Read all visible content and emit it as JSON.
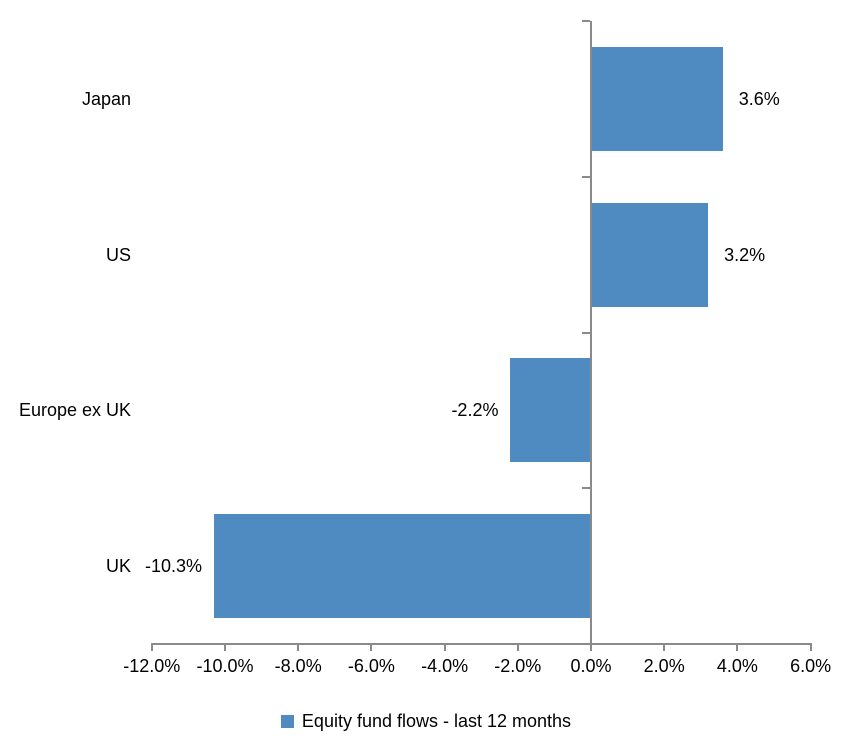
{
  "chart_data": {
    "type": "bar",
    "orientation": "horizontal",
    "title": "",
    "xlabel": "",
    "ylabel": "",
    "categories": [
      "Japan",
      "US",
      "Europe ex UK",
      "UK"
    ],
    "values": [
      3.6,
      3.2,
      -2.2,
      -10.3
    ],
    "data_labels": [
      "3.6%",
      "3.2%",
      "-2.2%",
      "-10.3%"
    ],
    "series_name": "Equity fund flows - last 12 months",
    "xlim": [
      -12,
      6
    ],
    "x_ticks": [
      -12,
      -10,
      -8,
      -6,
      -4,
      -2,
      0,
      2,
      4,
      6
    ],
    "x_tick_labels": [
      "-12.0%",
      "-10.0%",
      "-8.0%",
      "-6.0%",
      "-4.0%",
      "-2.0%",
      "0.0%",
      "2.0%",
      "4.0%",
      "6.0%"
    ],
    "grid": false,
    "legend_position": "bottom",
    "bar_color": "#4F8BC1",
    "axis_color": "#8A8A8A",
    "text_color": "#000000"
  },
  "legend": {
    "label": "Equity fund flows - last 12 months"
  }
}
